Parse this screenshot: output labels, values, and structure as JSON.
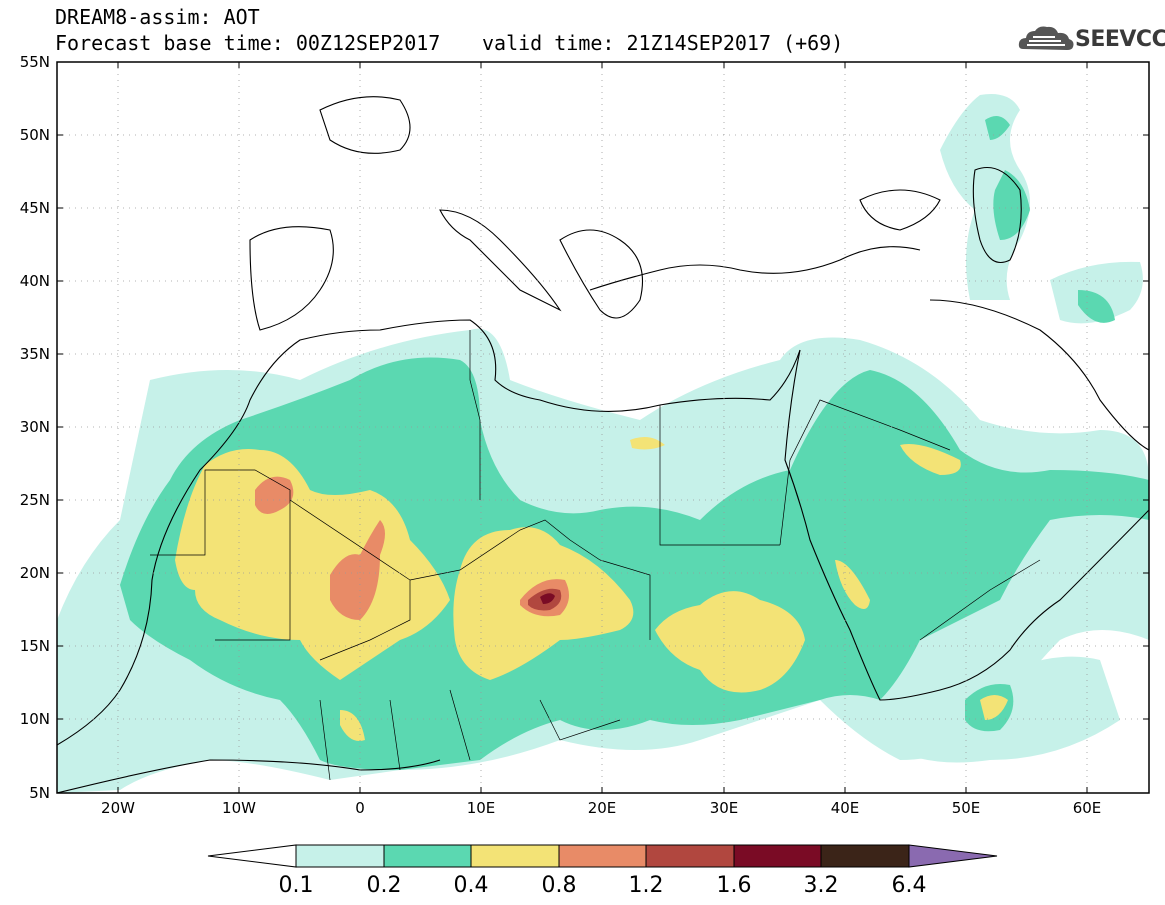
{
  "header": {
    "model_title": "DREAM8-assim: AOT",
    "base_time": "Forecast base time: 00Z12SEP2017",
    "valid_time": "valid time: 21Z14SEP2017 (+69)"
  },
  "logo": {
    "text": "SEEVCCC",
    "icon": "cloud-icon"
  },
  "map": {
    "lat_labels": [
      "55N",
      "50N",
      "45N",
      "40N",
      "35N",
      "30N",
      "25N",
      "20N",
      "15N",
      "10N",
      "5N"
    ],
    "lon_labels": [
      "20W",
      "10W",
      "0",
      "10E",
      "20E",
      "30E",
      "40E",
      "50E",
      "60E"
    ]
  },
  "colorbar": {
    "labels": [
      "0.1",
      "0.2",
      "0.4",
      "0.8",
      "1.2",
      "1.6",
      "3.2",
      "6.4"
    ],
    "colors": [
      "#ffffff",
      "#c6f1e9",
      "#5bd8b1",
      "#f3e376",
      "#e88b67",
      "#b1473f",
      "#7a0b25",
      "#3b2418",
      "#8a6ab0"
    ]
  }
}
